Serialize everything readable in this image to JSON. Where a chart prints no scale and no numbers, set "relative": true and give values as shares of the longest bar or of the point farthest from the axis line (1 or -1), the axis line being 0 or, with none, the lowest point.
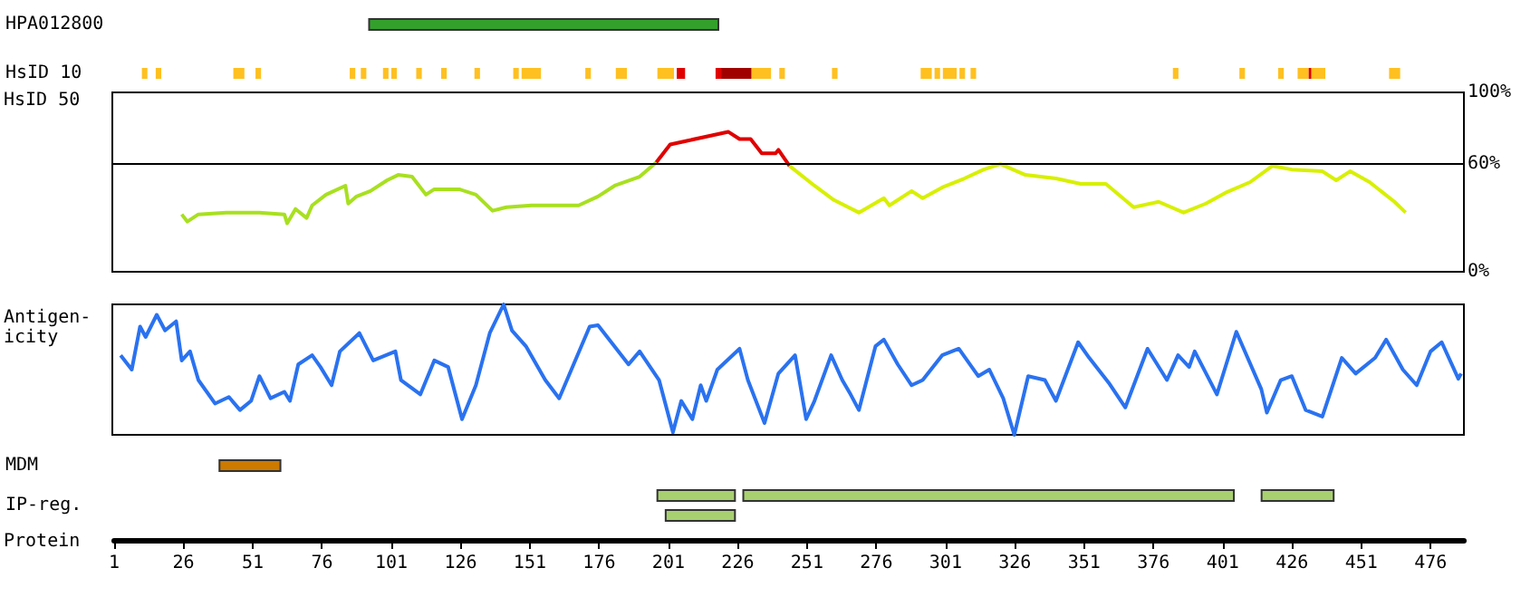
{
  "chart_data": [
    {
      "type": "bar",
      "orientation": "horizontal",
      "categories": [
        "HPA012800",
        "HsID 10"
      ],
      "xlim": [
        1,
        488
      ],
      "tick_labels": "y",
      "series": [
        {
          "color": "#33a02c",
          "values": [
            126,
            null
          ],
          "base": [
            93,
            null
          ]
        },
        {
          "color": "#ffc020",
          "values": [
            null,
            2
          ],
          "base": [
            null,
            11
          ]
        },
        {
          "color": "#ffc020",
          "values": [
            null,
            2
          ],
          "base": [
            null,
            16
          ]
        },
        {
          "color": "#ffc020",
          "values": [
            null,
            4
          ],
          "base": [
            null,
            44
          ]
        },
        {
          "color": "#ffc020",
          "values": [
            null,
            2
          ],
          "base": [
            null,
            52
          ]
        },
        {
          "color": "#ffc020",
          "values": [
            null,
            2
          ],
          "base": [
            null,
            86
          ]
        },
        {
          "color": "#ffc020",
          "values": [
            null,
            2
          ],
          "base": [
            null,
            90
          ]
        },
        {
          "color": "#ffc020",
          "values": [
            null,
            2
          ],
          "base": [
            null,
            98
          ]
        },
        {
          "color": "#ffc020",
          "values": [
            null,
            2
          ],
          "base": [
            null,
            101
          ]
        },
        {
          "color": "#ffc020",
          "values": [
            null,
            2
          ],
          "base": [
            null,
            110
          ]
        },
        {
          "color": "#ffc020",
          "values": [
            null,
            2
          ],
          "base": [
            null,
            119
          ]
        },
        {
          "color": "#ffc020",
          "values": [
            null,
            2
          ],
          "base": [
            null,
            131
          ]
        },
        {
          "color": "#ffc020",
          "values": [
            null,
            2
          ],
          "base": [
            null,
            145
          ]
        },
        {
          "color": "#ffc020",
          "values": [
            null,
            7
          ],
          "base": [
            null,
            148
          ]
        },
        {
          "color": "#ffc020",
          "values": [
            null,
            2
          ],
          "base": [
            null,
            171
          ]
        },
        {
          "color": "#ffc020",
          "values": [
            null,
            4
          ],
          "base": [
            null,
            182
          ]
        },
        {
          "color": "#ffc020",
          "values": [
            null,
            6
          ],
          "base": [
            null,
            197
          ]
        },
        {
          "color": "#e00000",
          "values": [
            null,
            3
          ],
          "base": [
            null,
            204
          ]
        },
        {
          "color": "#e00000",
          "values": [
            null,
            2
          ],
          "base": [
            null,
            218
          ]
        },
        {
          "color": "#a00000",
          "values": [
            null,
            11
          ],
          "base": [
            null,
            220
          ]
        },
        {
          "color": "#ffc020",
          "values": [
            null,
            7
          ],
          "base": [
            null,
            231
          ]
        },
        {
          "color": "#ffc020",
          "values": [
            null,
            2
          ],
          "base": [
            null,
            241
          ]
        },
        {
          "color": "#ffc020",
          "values": [
            null,
            2
          ],
          "base": [
            null,
            260
          ]
        },
        {
          "color": "#ffc020",
          "values": [
            null,
            4
          ],
          "base": [
            null,
            292
          ]
        },
        {
          "color": "#ffc020",
          "values": [
            null,
            2
          ],
          "base": [
            null,
            297
          ]
        },
        {
          "color": "#ffc020",
          "values": [
            null,
            5
          ],
          "base": [
            null,
            300
          ]
        },
        {
          "color": "#ffc020",
          "values": [
            null,
            2
          ],
          "base": [
            null,
            306
          ]
        },
        {
          "color": "#ffc020",
          "values": [
            null,
            2
          ],
          "base": [
            null,
            310
          ]
        },
        {
          "color": "#ffc020",
          "values": [
            null,
            2
          ],
          "base": [
            null,
            383
          ]
        },
        {
          "color": "#ffc020",
          "values": [
            null,
            2
          ],
          "base": [
            null,
            407
          ]
        },
        {
          "color": "#ffc020",
          "values": [
            null,
            2
          ],
          "base": [
            null,
            421
          ]
        },
        {
          "color": "#ffc020",
          "values": [
            null,
            4
          ],
          "base": [
            null,
            428
          ]
        },
        {
          "color": "#e00000",
          "values": [
            null,
            1
          ],
          "base": [
            null,
            432
          ]
        },
        {
          "color": "#ffc020",
          "values": [
            null,
            5
          ],
          "base": [
            null,
            433
          ]
        },
        {
          "color": "#ffc020",
          "values": [
            null,
            4
          ],
          "base": [
            null,
            461
          ]
        }
      ]
    },
    {
      "type": "line",
      "ylabel": "HsID 50",
      "xlim": [
        1,
        488
      ],
      "ylim": [
        0,
        100
      ],
      "yticks": [
        {
          "value": 0,
          "label": "0%"
        },
        {
          "value": 60,
          "label": "60%"
        },
        {
          "value": 100,
          "label": "100%"
        }
      ],
      "tick_labels": "y",
      "ref_lines": [
        {
          "axis": "y",
          "value": 60,
          "color": "#000000"
        }
      ],
      "series": [
        {
          "color": "#a8e020",
          "x": [
            26,
            28,
            32,
            42,
            54,
            63,
            64,
            67,
            71,
            73,
            78,
            85,
            86,
            89,
            94,
            100,
            104,
            109,
            114,
            117,
            126,
            132,
            138,
            143,
            152,
            163,
            169,
            176,
            182,
            191,
            197
          ],
          "values": [
            32,
            28,
            32,
            33,
            33,
            32,
            27,
            35,
            30,
            37,
            43,
            48,
            38,
            42,
            45,
            51,
            54,
            53,
            43,
            46,
            46,
            43,
            34,
            36,
            37,
            37,
            37,
            42,
            48,
            53,
            61
          ]
        },
        {
          "color": "#e00000",
          "x": [
            197,
            202,
            208,
            217,
            223,
            227,
            231,
            235,
            240,
            241,
            245
          ],
          "values": [
            61,
            71,
            73,
            76,
            78,
            74,
            74,
            66,
            66,
            68,
            59
          ]
        },
        {
          "color": "#d8f000",
          "x": [
            245,
            254,
            261,
            270,
            279,
            281,
            289,
            293,
            300,
            308,
            315,
            321,
            330,
            341,
            350,
            359,
            369,
            378,
            387,
            395,
            402,
            411,
            419,
            426,
            437,
            442,
            447,
            454,
            463,
            467
          ],
          "values": [
            59,
            48,
            40,
            33,
            41,
            37,
            45,
            41,
            47,
            52,
            57,
            60,
            54,
            52,
            49,
            49,
            36,
            39,
            33,
            38,
            44,
            50,
            59,
            57,
            56,
            51,
            56,
            50,
            39,
            33
          ]
        }
      ]
    },
    {
      "type": "line",
      "ylabel": "Antigen-\nicity",
      "relative": true,
      "xlim": [
        1,
        488
      ],
      "tick_labels": false,
      "series": [
        {
          "color": "#2a72f0",
          "x": [
            4,
            8,
            11,
            13,
            17,
            20,
            24,
            26,
            29,
            32,
            38,
            43,
            47,
            51,
            54,
            58,
            63,
            65,
            68,
            73,
            76,
            80,
            83,
            90,
            95,
            103,
            105,
            112,
            117,
            122,
            127,
            132,
            137,
            142,
            145,
            150,
            157,
            162,
            173,
            176,
            187,
            191,
            198,
            203,
            206,
            210,
            213,
            215,
            219,
            227,
            230,
            236,
            241,
            247,
            251,
            254,
            260,
            264,
            267,
            270,
            276,
            279,
            284,
            289,
            293,
            300,
            306,
            313,
            317,
            322,
            326,
            331,
            337,
            341,
            349,
            353,
            360,
            366,
            374,
            381,
            385,
            389,
            391,
            399,
            406,
            415,
            417,
            422,
            426,
            431,
            437,
            444,
            449,
            456,
            460,
            466,
            471,
            476,
            480,
            486,
            487
          ],
          "values": [
            0.61,
            0.5,
            0.83,
            0.75,
            0.92,
            0.8,
            0.87,
            0.57,
            0.64,
            0.42,
            0.24,
            0.29,
            0.19,
            0.26,
            0.45,
            0.28,
            0.33,
            0.26,
            0.54,
            0.61,
            0.52,
            0.38,
            0.64,
            0.78,
            0.57,
            0.64,
            0.42,
            0.31,
            0.57,
            0.52,
            0.12,
            0.38,
            0.78,
            1,
            0.8,
            0.68,
            0.42,
            0.28,
            0.83,
            0.84,
            0.54,
            0.64,
            0.42,
            0.02,
            0.26,
            0.12,
            0.38,
            0.26,
            0.5,
            0.66,
            0.42,
            0.09,
            0.47,
            0.61,
            0.12,
            0.26,
            0.61,
            0.42,
            0.31,
            0.19,
            0.68,
            0.73,
            0.54,
            0.38,
            0.42,
            0.61,
            0.66,
            0.45,
            0.5,
            0.28,
            0,
            0.45,
            0.42,
            0.26,
            0.71,
            0.59,
            0.4,
            0.21,
            0.66,
            0.42,
            0.61,
            0.52,
            0.64,
            0.31,
            0.79,
            0.35,
            0.17,
            0.42,
            0.45,
            0.19,
            0.14,
            0.59,
            0.47,
            0.59,
            0.73,
            0.5,
            0.38,
            0.64,
            0.71,
            0.43,
            0.47
          ]
        }
      ]
    },
    {
      "type": "bar",
      "orientation": "horizontal",
      "categories": [
        "MDM",
        "IP-reg."
      ],
      "xlabel": "Protein",
      "xlim": [
        1,
        488
      ],
      "xticks": [
        1,
        26,
        51,
        76,
        101,
        126,
        151,
        176,
        201,
        226,
        251,
        276,
        301,
        326,
        351,
        376,
        401,
        426,
        451,
        476
      ],
      "series": [
        {
          "color": "#cc7a00",
          "values": [
            22,
            null
          ],
          "base": [
            39,
            null
          ]
        },
        {
          "color": "#a8d070",
          "values": [
            null,
            28
          ],
          "base": [
            null,
            197
          ]
        },
        {
          "color": "#a8d070",
          "values": [
            null,
            177
          ],
          "base": [
            null,
            228
          ]
        },
        {
          "color": "#a8d070",
          "values": [
            null,
            26
          ],
          "base": [
            null,
            415
          ]
        },
        {
          "color": "#a8d070",
          "values": [
            null,
            25
          ],
          "base": [
            null,
            200
          ]
        }
      ]
    }
  ]
}
